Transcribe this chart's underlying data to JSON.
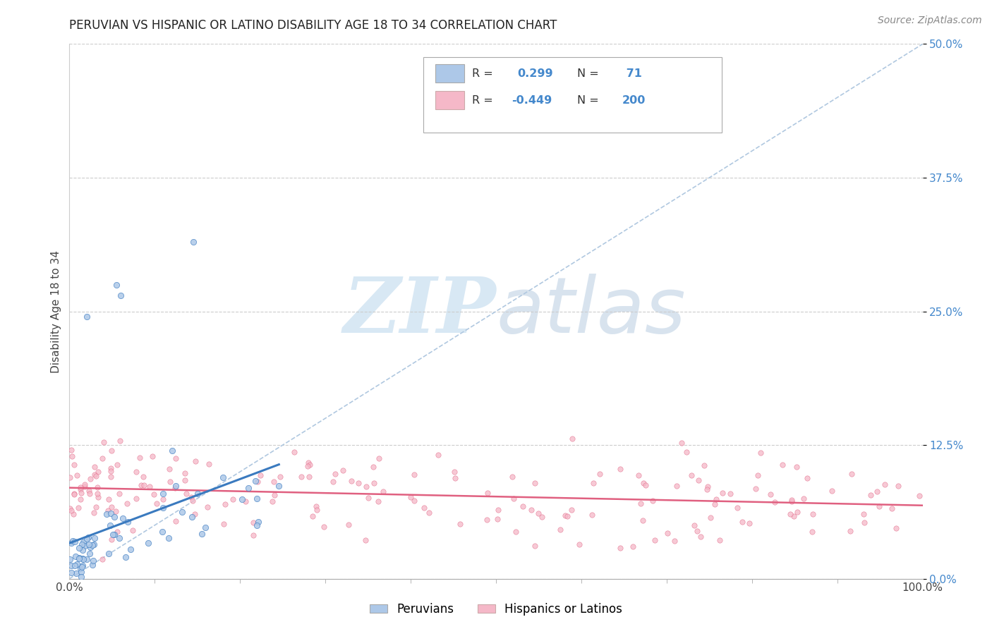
{
  "title": "PERUVIAN VS HISPANIC OR LATINO DISABILITY AGE 18 TO 34 CORRELATION CHART",
  "source": "Source: ZipAtlas.com",
  "ylabel_label": "Disability Age 18 to 34",
  "y_tick_labels": [
    "0.0%",
    "12.5%",
    "25.0%",
    "37.5%",
    "50.0%"
  ],
  "y_tick_values": [
    0.0,
    0.125,
    0.25,
    0.375,
    0.5
  ],
  "xlim": [
    0.0,
    1.0
  ],
  "ylim": [
    0.0,
    0.5
  ],
  "blue_R": 0.299,
  "blue_N": 71,
  "pink_R": -0.449,
  "pink_N": 200,
  "blue_color": "#adc8e8",
  "blue_line_color": "#3a7abf",
  "pink_color": "#f5b8c8",
  "pink_line_color": "#e06080",
  "diag_line_color": "#b0c8e0",
  "grid_color": "#cccccc",
  "legend_label_blue": "Peruvians",
  "legend_label_pink": "Hispanics or Latinos",
  "title_color": "#222222",
  "source_color": "#888888",
  "tick_color_y": "#4488cc",
  "tick_color_x": "#444444"
}
